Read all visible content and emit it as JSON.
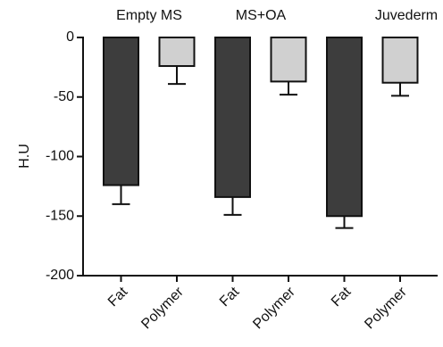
{
  "chart_data": {
    "type": "bar",
    "y_label": "H.U",
    "groups": [
      "Empty MS",
      "MS+OA",
      "Juvederm"
    ],
    "categories": [
      "Fat",
      "Polymer",
      "Fat",
      "Polymer",
      "Fat",
      "Polymer"
    ],
    "values": [
      -124,
      -24,
      -134,
      -37,
      -150,
      -38
    ],
    "errors": [
      16,
      15,
      15,
      11,
      10,
      11
    ],
    "colors": [
      "#3d3d3d",
      "#d0d0d0",
      "#3d3d3d",
      "#d0d0d0",
      "#3d3d3d",
      "#d0d0d0"
    ],
    "ylim": [
      -200,
      0
    ],
    "yticks": [
      0,
      -50,
      -100,
      -150,
      -200
    ],
    "grid": false
  }
}
